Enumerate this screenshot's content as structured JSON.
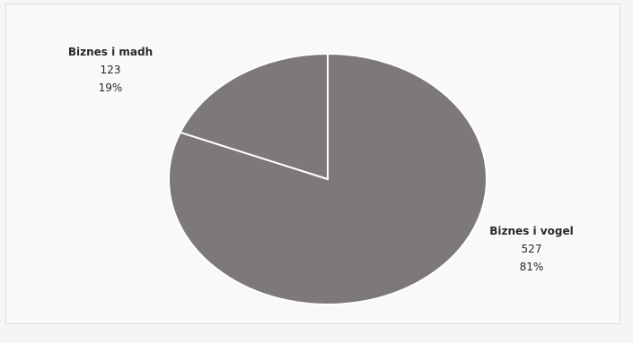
{
  "chart_data": {
    "type": "pie",
    "categories": [
      "Biznes i vogel",
      "Biznes i madh"
    ],
    "values": [
      527,
      123
    ],
    "percent_labels": [
      "81%",
      "19%"
    ],
    "value_labels": [
      "527",
      "123"
    ],
    "colors": [
      "#7d787a",
      "#7d787a"
    ],
    "slice_border_color": "#ffffff",
    "title": "",
    "legend": "none"
  }
}
